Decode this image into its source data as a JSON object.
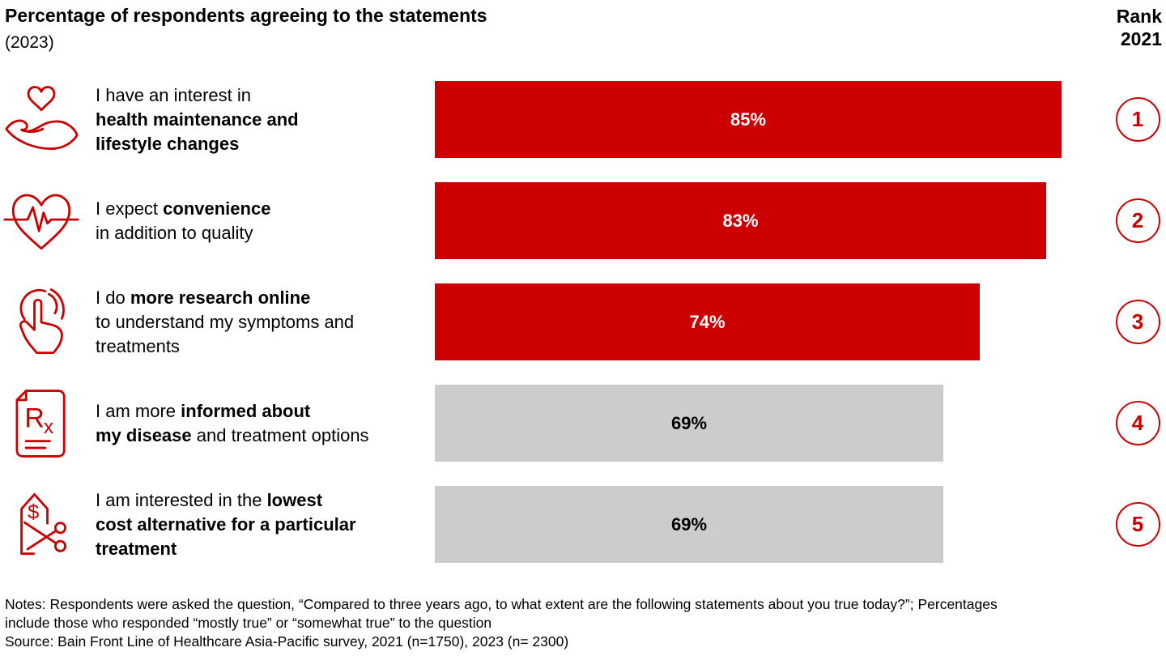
{
  "header": {
    "title": "Percentage of respondents agreeing to the statements",
    "subtitle": "(2023)",
    "rank_column": {
      "line1": "Rank",
      "line2": "2021"
    }
  },
  "chart_data": {
    "type": "bar",
    "orientation": "horizontal",
    "title": "Percentage of respondents agreeing to the statements (2023)",
    "categories": [
      "I have an interest in health maintenance and lifestyle changes",
      "I expect convenience in addition to quality",
      "I do more research online to understand my symptoms and treatments",
      "I am more informed about my disease and treatment options",
      "I am interested in the lowest cost alternative for a particular treatment"
    ],
    "values": [
      85,
      83,
      74,
      69,
      69
    ],
    "value_labels": [
      "85%",
      "83%",
      "74%",
      "69%",
      "69%"
    ],
    "ranks_2021": [
      1,
      2,
      3,
      4,
      5
    ],
    "bar_colors": [
      "#CC0000",
      "#CC0000",
      "#CC0000",
      "#CCCCCC",
      "#CCCCCC"
    ],
    "value_label_colors": [
      "#FFFFFF",
      "#FFFFFF",
      "#FFFFFF",
      "#000000",
      "#000000"
    ],
    "xlim": [
      0,
      100
    ],
    "grid": false,
    "legend": false
  },
  "rows": [
    {
      "icon": "heart-in-hand-icon",
      "label_lines": [
        [
          {
            "t": "I have an interest in",
            "b": false
          }
        ],
        [
          {
            "t": "health maintenance and",
            "b": true
          }
        ],
        [
          {
            "t": "lifestyle changes",
            "b": true
          }
        ]
      ],
      "value": 85,
      "value_label": "85%",
      "bar_color": "#CC0000",
      "value_color": "#FFFFFF",
      "rank": "1"
    },
    {
      "icon": "heart-pulse-icon",
      "label_lines": [
        [
          {
            "t": "I expect ",
            "b": false
          },
          {
            "t": "convenience",
            "b": true
          }
        ],
        [
          {
            "t": "in addition to quality",
            "b": false
          }
        ]
      ],
      "value": 83,
      "value_label": "83%",
      "bar_color": "#CC0000",
      "value_color": "#FFFFFF",
      "rank": "2"
    },
    {
      "icon": "tap-finger-icon",
      "label_lines": [
        [
          {
            "t": "I do ",
            "b": false
          },
          {
            "t": "more research online",
            "b": true
          }
        ],
        [
          {
            "t": "to understand my symptoms and",
            "b": false
          }
        ],
        [
          {
            "t": "treatments",
            "b": false
          }
        ]
      ],
      "value": 74,
      "value_label": "74%",
      "bar_color": "#CC0000",
      "value_color": "#FFFFFF",
      "rank": "3"
    },
    {
      "icon": "rx-document-icon",
      "label_lines": [
        [
          {
            "t": "I am more ",
            "b": false
          },
          {
            "t": "informed about",
            "b": true
          }
        ],
        [
          {
            "t": "my disease",
            "b": true
          },
          {
            "t": " and treatment options",
            "b": false
          }
        ]
      ],
      "value": 69,
      "value_label": "69%",
      "bar_color": "#CCCCCC",
      "value_color": "#000000",
      "rank": "4"
    },
    {
      "icon": "price-tag-scissors-icon",
      "label_lines": [
        [
          {
            "t": "I am interested in the ",
            "b": false
          },
          {
            "t": "lowest",
            "b": true
          }
        ],
        [
          {
            "t": "cost alternative for a particular",
            "b": true
          }
        ],
        [
          {
            "t": "treatment",
            "b": true
          }
        ]
      ],
      "value": 69,
      "value_label": "69%",
      "bar_color": "#CCCCCC",
      "value_color": "#000000",
      "rank": "5"
    }
  ],
  "notes": {
    "lines": [
      "Notes: Respondents were asked the question, “Compared to three years ago, to what extent are the following statements about you true today?”; Percentages",
      "include those who responded “mostly true” or “somewhat true” to the question",
      "Source: Bain Front Line of Healthcare Asia-Pacific survey, 2021 (n=1750), 2023 (n= 2300)"
    ]
  },
  "colors": {
    "accent_red": "#CC0000",
    "bar_gray": "#CCCCCC"
  }
}
